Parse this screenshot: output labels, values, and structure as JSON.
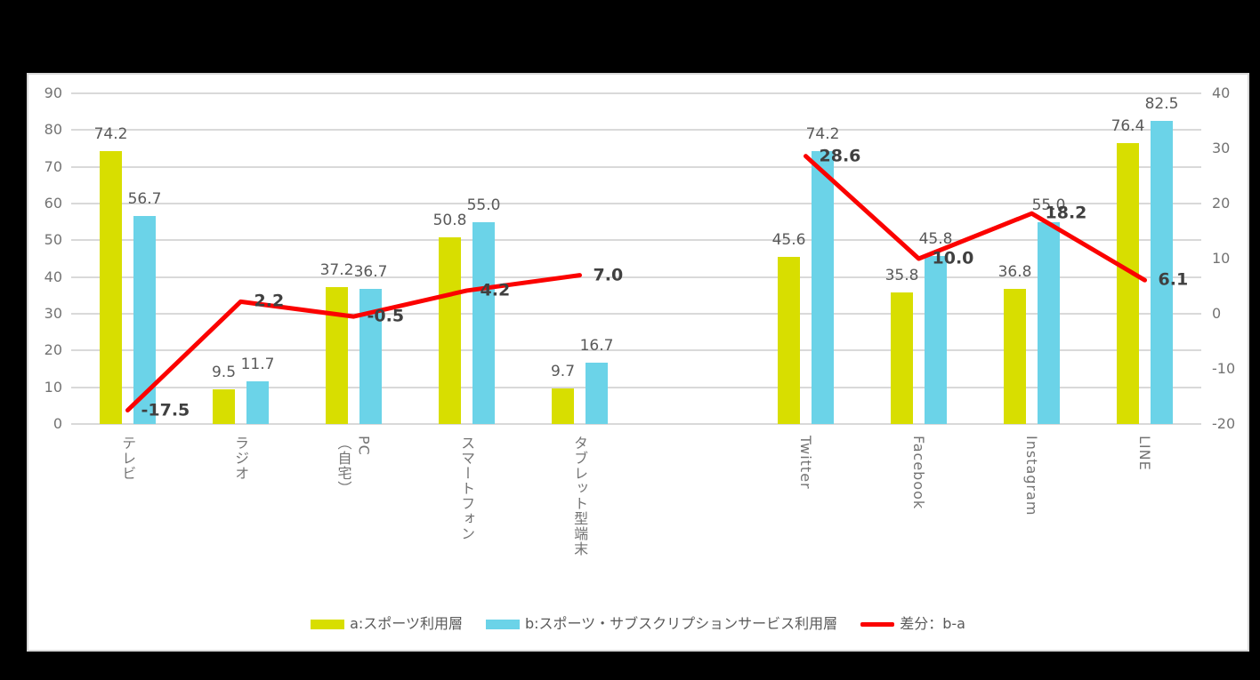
{
  "chart_data": {
    "type": "bar",
    "title": "",
    "categories": [
      "テレビ",
      "ラジオ",
      "PC\n（自宅）",
      "スマートフォン",
      "タブレット型端末",
      "",
      "Twitter",
      "Facebook",
      "Instagram",
      "LINE"
    ],
    "series": [
      {
        "name": "a:スポーツ利用層",
        "type": "bar",
        "axis": "left",
        "color": "#d8de00",
        "values": [
          74.2,
          9.5,
          37.2,
          50.8,
          9.7,
          null,
          45.6,
          35.8,
          36.8,
          76.4
        ]
      },
      {
        "name": "b:スポーツ・サブスクリプションサービス利用層",
        "type": "bar",
        "axis": "left",
        "color": "#6bd3e8",
        "values": [
          56.7,
          11.7,
          36.7,
          55.0,
          16.7,
          null,
          74.2,
          45.8,
          55.0,
          82.5
        ]
      },
      {
        "name": "差分：b-a",
        "type": "line",
        "axis": "right",
        "color": "#fb0200",
        "values": [
          -17.5,
          2.2,
          -0.5,
          4.2,
          7.0,
          null,
          28.6,
          10.0,
          18.2,
          6.1
        ]
      }
    ],
    "left_axis": {
      "min": 0,
      "max": 90,
      "step": 10,
      "ticks": [
        "0",
        "10",
        "20",
        "30",
        "40",
        "50",
        "60",
        "70",
        "80",
        "90"
      ]
    },
    "right_axis": {
      "min": -20,
      "max": 40,
      "step": 10,
      "ticks": [
        "-20",
        "-10",
        "0",
        "10",
        "20",
        "30",
        "40"
      ]
    },
    "grid": true,
    "legend_position": "bottom",
    "value_label_decimals": 1
  },
  "colors": {
    "page_background": "#000000",
    "panel_background": "#ffffff",
    "panel_border": "#d9d9d9",
    "gridline": "#d9d9d9",
    "axis_text": "#737373",
    "bar_value_label": "#595959",
    "line_value_label": "#404040"
  }
}
